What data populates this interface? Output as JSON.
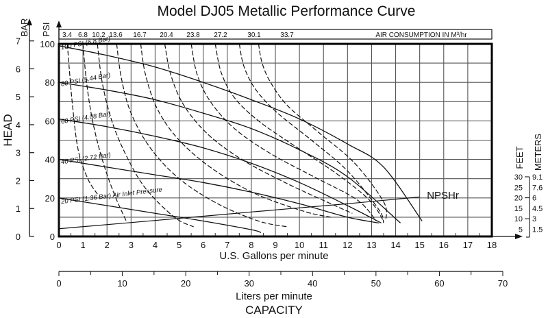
{
  "chart_data": {
    "type": "line",
    "title": "Model DJ05 Metallic Performance Curve",
    "xlabel": "U.S. Gallons per minute",
    "xlabel_secondary": "Liters per minute",
    "xlabel_group": "CAPACITY",
    "ylabel": "HEAD",
    "y_axis_psi_label": "PSI",
    "y_axis_bar_label": "BAR",
    "xlim": [
      0,
      18
    ],
    "ylim_psi": [
      0,
      100
    ],
    "x_ticks": [
      "0",
      "1",
      "2",
      "3",
      "4",
      "5",
      "6",
      "7",
      "8",
      "9",
      "10",
      "11",
      "12",
      "13",
      "14",
      "15",
      "16",
      "17",
      "18"
    ],
    "psi_ticks": [
      "0",
      "20",
      "40",
      "60",
      "80",
      "100"
    ],
    "bar_ticks": [
      "0",
      "1",
      "2",
      "3",
      "4",
      "5",
      "6",
      "7"
    ],
    "lpm_ticks": [
      "0",
      "10",
      "20",
      "30",
      "40",
      "50",
      "60",
      "70"
    ],
    "grid": true,
    "air_consumption": {
      "label": "AIR CONSUMPTION IN M³/hr",
      "values": [
        "3.4",
        "6.8",
        "10.2",
        "13.6",
        "16.7",
        "20.4",
        "23.8",
        "27.2",
        "30.1",
        "33.7"
      ],
      "curves": [
        {
          "name": "3.4",
          "points": [
            [
              0.35,
              100
            ],
            [
              0.55,
              70
            ],
            [
              0.8,
              45
            ],
            [
              1.2,
              30
            ],
            [
              1.6,
              22
            ]
          ]
        },
        {
          "name": "6.8",
          "points": [
            [
              1.0,
              100
            ],
            [
              1.15,
              80
            ],
            [
              1.4,
              60
            ],
            [
              1.8,
              40
            ],
            [
              2.3,
              22
            ],
            [
              2.8,
              8
            ]
          ]
        },
        {
          "name": "10.2",
          "points": [
            [
              1.6,
              100
            ],
            [
              1.8,
              80
            ],
            [
              2.2,
              60
            ],
            [
              2.8,
              42
            ],
            [
              3.6,
              25
            ],
            [
              4.8,
              10
            ],
            [
              5.6,
              5
            ]
          ]
        },
        {
          "name": "13.6",
          "points": [
            [
              2.4,
              100
            ],
            [
              2.6,
              82
            ],
            [
              3.0,
              64
            ],
            [
              3.8,
              46
            ],
            [
              5.0,
              30
            ],
            [
              6.6,
              17
            ],
            [
              8.3,
              8
            ],
            [
              9.5,
              5
            ]
          ]
        },
        {
          "name": "16.7",
          "points": [
            [
              3.4,
              100
            ],
            [
              3.6,
              84
            ],
            [
              4.1,
              66
            ],
            [
              5.0,
              50
            ],
            [
              6.4,
              35
            ],
            [
              8.2,
              22
            ],
            [
              10.2,
              13
            ],
            [
              11.3,
              10
            ]
          ]
        },
        {
          "name": "20.4",
          "points": [
            [
              4.4,
              100
            ],
            [
              4.65,
              84
            ],
            [
              5.2,
              68
            ],
            [
              6.2,
              53
            ],
            [
              7.6,
              40
            ],
            [
              9.4,
              28
            ],
            [
              11.3,
              17
            ],
            [
              12.2,
              12
            ]
          ]
        },
        {
          "name": "23.8",
          "points": [
            [
              5.5,
              100
            ],
            [
              5.75,
              84
            ],
            [
              6.3,
              70
            ],
            [
              7.3,
              56
            ],
            [
              8.8,
              43
            ],
            [
              10.6,
              31
            ],
            [
              12.4,
              19
            ],
            [
              13.2,
              8
            ]
          ]
        },
        {
          "name": "27.2",
          "points": [
            [
              6.5,
              100
            ],
            [
              6.75,
              85
            ],
            [
              7.3,
              72
            ],
            [
              8.3,
              60
            ],
            [
              9.8,
              47
            ],
            [
              11.5,
              33
            ],
            [
              12.9,
              19
            ],
            [
              13.5,
              8
            ]
          ]
        },
        {
          "name": "30.1",
          "points": [
            [
              7.5,
              100
            ],
            [
              7.7,
              88
            ],
            [
              8.2,
              76
            ],
            [
              9.1,
              64
            ],
            [
              10.5,
              50
            ],
            [
              12.0,
              34
            ],
            [
              13.3,
              14
            ],
            [
              13.5,
              7
            ]
          ]
        },
        {
          "name": "33.7",
          "points": [
            [
              8.3,
              100
            ],
            [
              8.45,
              90
            ],
            [
              8.8,
              80
            ],
            [
              9.5,
              68
            ],
            [
              10.8,
              54
            ],
            [
              12.3,
              38
            ],
            [
              13.5,
              18
            ],
            [
              13.6,
              9
            ]
          ]
        }
      ]
    },
    "series": [
      {
        "name": "100 PSI (6.8 Bar)",
        "points": [
          [
            0,
            99
          ],
          [
            2,
            94
          ],
          [
            4,
            88
          ],
          [
            6,
            80
          ],
          [
            8,
            71
          ],
          [
            10,
            61
          ],
          [
            12,
            48
          ],
          [
            13.5,
            36
          ],
          [
            15.1,
            8
          ]
        ]
      },
      {
        "name": "80 PSI (5.44 Bar)",
        "points": [
          [
            0,
            80
          ],
          [
            2,
            76
          ],
          [
            4,
            71
          ],
          [
            6,
            64
          ],
          [
            8,
            56
          ],
          [
            10,
            45
          ],
          [
            12,
            31
          ],
          [
            14.2,
            7
          ]
        ]
      },
      {
        "name": "60 PSI (4.08 Bar)",
        "points": [
          [
            0,
            61
          ],
          [
            2,
            57
          ],
          [
            4,
            52
          ],
          [
            6,
            46
          ],
          [
            8,
            38
          ],
          [
            10,
            28
          ],
          [
            12,
            16
          ],
          [
            13.4,
            7
          ]
        ]
      },
      {
        "name": "40 PSI (2.72 Bar)",
        "points": [
          [
            0,
            40
          ],
          [
            2,
            36
          ],
          [
            4,
            32
          ],
          [
            6,
            28
          ],
          [
            8,
            23
          ],
          [
            10,
            17
          ],
          [
            12,
            10
          ],
          [
            13.3,
            7
          ]
        ]
      },
      {
        "name": "20 PSI (1.36 Bar) Air Inlet Pressure",
        "points": [
          [
            0,
            20
          ],
          [
            2,
            16
          ],
          [
            4,
            12
          ],
          [
            6,
            8
          ],
          [
            8,
            3.5
          ],
          [
            8.4,
            2
          ]
        ]
      }
    ],
    "npshr": {
      "label": "NPSHr",
      "points": [
        [
          0,
          4
        ],
        [
          4,
          8.3
        ],
        [
          8,
          12.7
        ],
        [
          12,
          17
        ],
        [
          15,
          20.5
        ]
      ]
    },
    "npsh_scale": {
      "feet_label": "FEET",
      "meters_label": "METERS",
      "feet_ticks": [
        "30",
        "25",
        "20",
        "15",
        "10",
        "5"
      ],
      "meter_ticks": [
        "9.1",
        "7.6",
        "6",
        "4.5",
        "3",
        "1.5"
      ]
    }
  }
}
